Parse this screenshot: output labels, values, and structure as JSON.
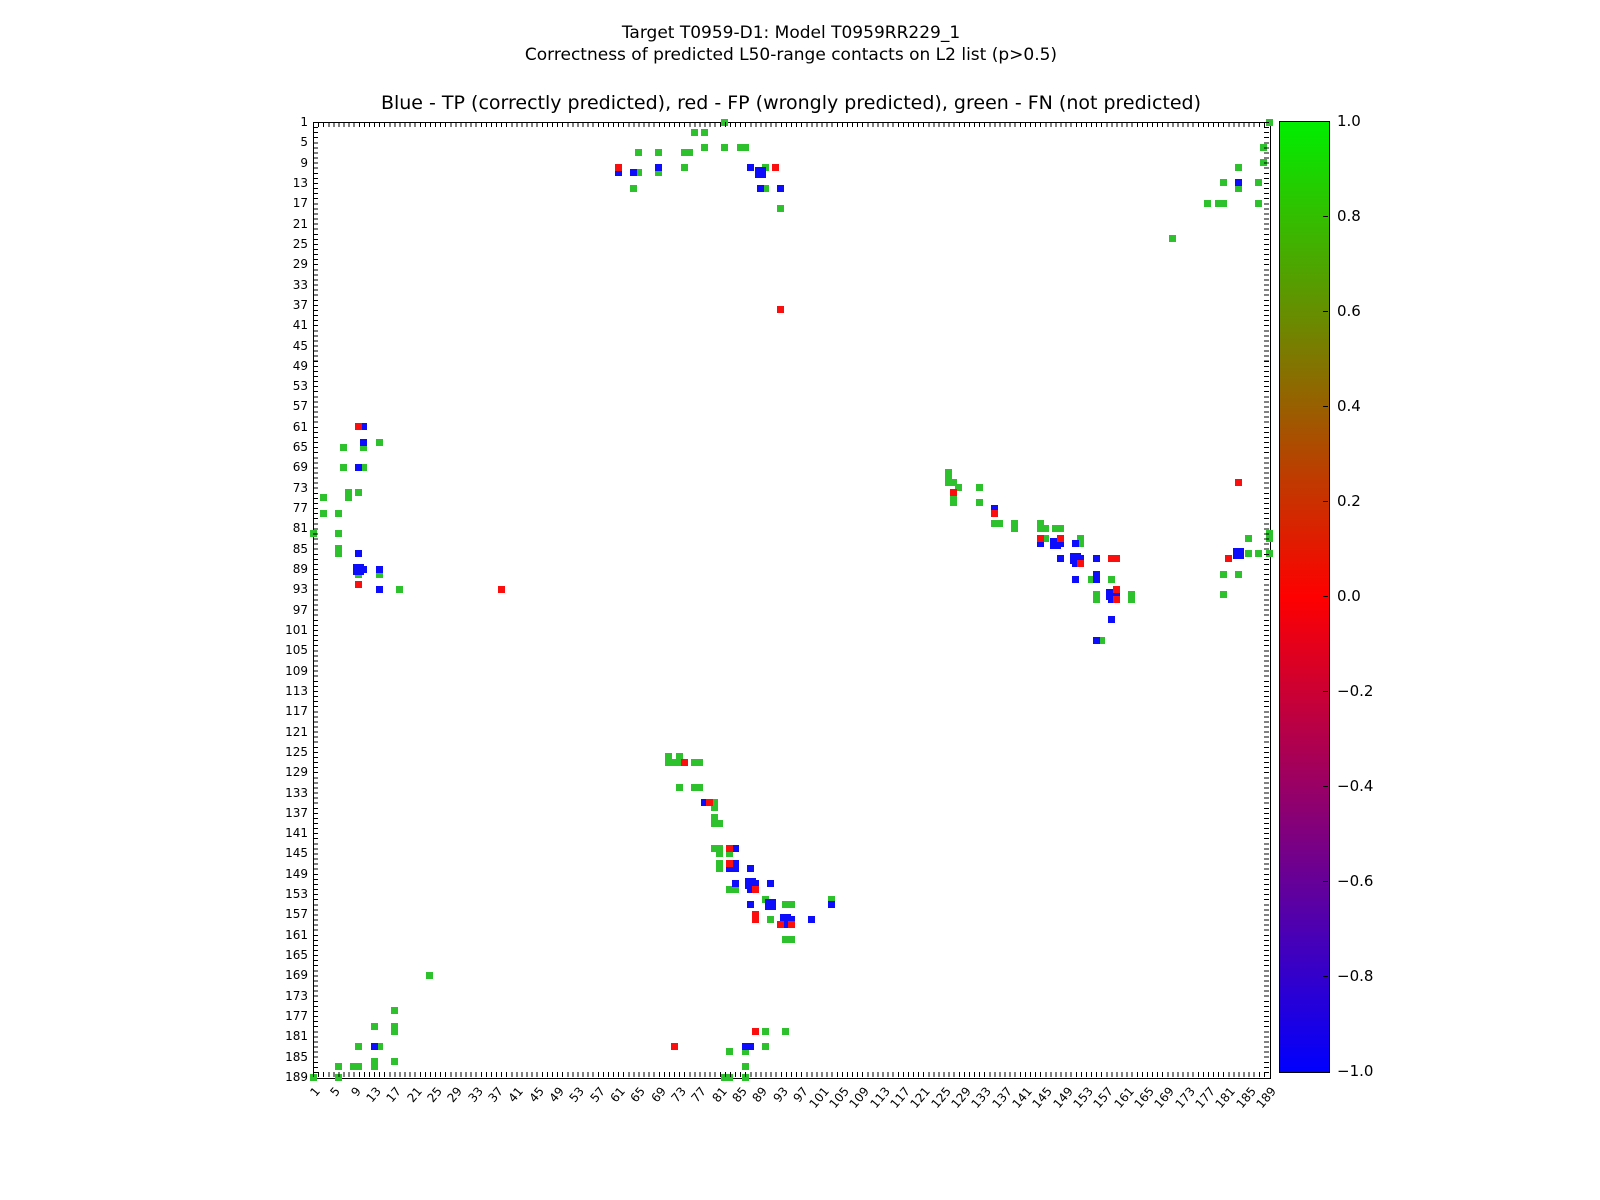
{
  "figure": {
    "suptitle_line1": "Target T0959-D1: Model T0959RR229_1",
    "suptitle_line2": "Correctness of predicted L50-range contacts on L2 list (p>0.5)",
    "axes_title": "Blue - TP (correctly predicted), red - FP (wrongly predicted), green - FN (not predicted)"
  },
  "chart_data": {
    "type": "scatter",
    "title": "Blue - TP (correctly predicted), red - FP (wrongly predicted), green - FN (not predicted)",
    "x_range": [
      1,
      189
    ],
    "y_range": [
      1,
      189
    ],
    "y_inverted": true,
    "grid": false,
    "marker": "square",
    "axis_tick_values": [
      1,
      5,
      9,
      13,
      17,
      21,
      25,
      29,
      33,
      37,
      41,
      45,
      49,
      53,
      57,
      61,
      65,
      69,
      73,
      77,
      81,
      85,
      89,
      93,
      97,
      101,
      105,
      109,
      113,
      117,
      121,
      125,
      129,
      133,
      137,
      141,
      145,
      149,
      153,
      157,
      161,
      165,
      169,
      173,
      177,
      181,
      185,
      189
    ],
    "classes": {
      "b": "TP (correctly predicted)",
      "r": "FP (wrongly predicted)",
      "g": "FN (not predicted)"
    },
    "colors": {
      "g": "#2dc22d",
      "r": "#fb0e0e",
      "b": "#0d0dfb"
    },
    "points": [
      [
        82,
        1,
        "g"
      ],
      [
        76,
        3,
        "g"
      ],
      [
        78,
        3,
        "g"
      ],
      [
        78,
        6,
        "g"
      ],
      [
        82,
        6,
        "g"
      ],
      [
        85,
        6,
        "g"
      ],
      [
        86,
        6,
        "g"
      ],
      [
        65,
        7,
        "g"
      ],
      [
        69,
        7,
        "g"
      ],
      [
        74,
        7,
        "g"
      ],
      [
        75,
        7,
        "g"
      ],
      [
        65,
        11,
        "g"
      ],
      [
        69,
        11,
        "g"
      ],
      [
        74,
        10,
        "g"
      ],
      [
        90,
        10,
        "g"
      ],
      [
        64,
        14,
        "g"
      ],
      [
        90,
        14,
        "g"
      ],
      [
        93,
        18,
        "g"
      ],
      [
        189,
        1,
        "g"
      ],
      [
        188,
        6,
        "g"
      ],
      [
        188,
        9,
        "g"
      ],
      [
        183,
        10,
        "g"
      ],
      [
        180,
        13,
        "g"
      ],
      [
        187,
        13,
        "g"
      ],
      [
        183,
        14,
        "g"
      ],
      [
        177,
        17,
        "g"
      ],
      [
        179,
        17,
        "g"
      ],
      [
        180,
        17,
        "g"
      ],
      [
        187,
        17,
        "g"
      ],
      [
        170,
        24,
        "g"
      ],
      [
        14,
        64,
        "g"
      ],
      [
        7,
        65,
        "g"
      ],
      [
        11,
        65,
        "g"
      ],
      [
        7,
        69,
        "g"
      ],
      [
        11,
        69,
        "g"
      ],
      [
        8,
        74,
        "g"
      ],
      [
        8,
        75,
        "g"
      ],
      [
        10,
        74,
        "g"
      ],
      [
        3,
        75,
        "g"
      ],
      [
        3,
        78,
        "g"
      ],
      [
        6,
        78,
        "g"
      ],
      [
        1,
        82,
        "g"
      ],
      [
        6,
        82,
        "g"
      ],
      [
        6,
        85,
        "g"
      ],
      [
        6,
        86,
        "g"
      ],
      [
        10,
        90,
        "g"
      ],
      [
        14,
        90,
        "g"
      ],
      [
        18,
        93,
        "g"
      ],
      [
        126,
        70,
        "g"
      ],
      [
        126,
        71,
        "g"
      ],
      [
        126,
        72,
        "g"
      ],
      [
        127,
        72,
        "g"
      ],
      [
        128,
        73,
        "g"
      ],
      [
        127,
        75,
        "g"
      ],
      [
        127,
        76,
        "g"
      ],
      [
        132,
        73,
        "g"
      ],
      [
        132,
        76,
        "g"
      ],
      [
        135,
        80,
        "g"
      ],
      [
        136,
        80,
        "g"
      ],
      [
        139,
        80,
        "g"
      ],
      [
        139,
        81,
        "g"
      ],
      [
        144,
        80,
        "g"
      ],
      [
        144,
        81,
        "g"
      ],
      [
        145,
        81,
        "g"
      ],
      [
        147,
        81,
        "g"
      ],
      [
        148,
        81,
        "g"
      ],
      [
        145,
        83,
        "g"
      ],
      [
        152,
        83,
        "g"
      ],
      [
        152,
        84,
        "g"
      ],
      [
        154,
        91,
        "g"
      ],
      [
        158,
        91,
        "g"
      ],
      [
        155,
        94,
        "g"
      ],
      [
        155,
        95,
        "g"
      ],
      [
        162,
        94,
        "g"
      ],
      [
        162,
        95,
        "g"
      ],
      [
        156,
        103,
        "g"
      ],
      [
        185,
        83,
        "g"
      ],
      [
        189,
        82,
        "g"
      ],
      [
        189,
        83,
        "g"
      ],
      [
        185,
        86,
        "g"
      ],
      [
        187,
        86,
        "g"
      ],
      [
        189,
        86,
        "g"
      ],
      [
        180,
        90,
        "g"
      ],
      [
        183,
        90,
        "g"
      ],
      [
        180,
        94,
        "g"
      ],
      [
        71,
        126,
        "g"
      ],
      [
        71,
        127,
        "g"
      ],
      [
        72,
        127,
        "g"
      ],
      [
        73,
        126,
        "g"
      ],
      [
        73,
        127,
        "g"
      ],
      [
        76,
        127,
        "g"
      ],
      [
        77,
        127,
        "g"
      ],
      [
        73,
        132,
        "g"
      ],
      [
        76,
        132,
        "g"
      ],
      [
        77,
        132,
        "g"
      ],
      [
        80,
        135,
        "g"
      ],
      [
        80,
        136,
        "g"
      ],
      [
        80,
        138,
        "g"
      ],
      [
        80,
        139,
        "g"
      ],
      [
        81,
        139,
        "g"
      ],
      [
        80,
        144,
        "g"
      ],
      [
        81,
        144,
        "g"
      ],
      [
        81,
        145,
        "g"
      ],
      [
        83,
        145,
        "g"
      ],
      [
        81,
        147,
        "g"
      ],
      [
        81,
        148,
        "g"
      ],
      [
        83,
        152,
        "g"
      ],
      [
        84,
        152,
        "g"
      ],
      [
        90,
        154,
        "g"
      ],
      [
        94,
        155,
        "g"
      ],
      [
        95,
        155,
        "g"
      ],
      [
        103,
        154,
        "g"
      ],
      [
        91,
        158,
        "g"
      ],
      [
        94,
        162,
        "g"
      ],
      [
        95,
        162,
        "g"
      ],
      [
        90,
        180,
        "g"
      ],
      [
        94,
        180,
        "g"
      ],
      [
        83,
        184,
        "g"
      ],
      [
        86,
        184,
        "g"
      ],
      [
        90,
        183,
        "g"
      ],
      [
        86,
        187,
        "g"
      ],
      [
        82,
        189,
        "g"
      ],
      [
        83,
        189,
        "g"
      ],
      [
        86,
        189,
        "g"
      ],
      [
        24,
        169,
        "g"
      ],
      [
        17,
        176,
        "g"
      ],
      [
        13,
        179,
        "g"
      ],
      [
        17,
        179,
        "g"
      ],
      [
        17,
        180,
        "g"
      ],
      [
        10,
        183,
        "g"
      ],
      [
        14,
        183,
        "g"
      ],
      [
        6,
        187,
        "g"
      ],
      [
        9,
        187,
        "g"
      ],
      [
        10,
        187,
        "g"
      ],
      [
        13,
        186,
        "g"
      ],
      [
        13,
        187,
        "g"
      ],
      [
        17,
        186,
        "g"
      ],
      [
        1,
        189,
        "g"
      ],
      [
        6,
        189,
        "g"
      ],
      [
        61,
        11,
        "b"
      ],
      [
        64,
        11,
        "b"
      ],
      [
        69,
        10,
        "b"
      ],
      [
        87,
        10,
        "b"
      ],
      [
        89,
        11,
        "b",
        2
      ],
      [
        89,
        14,
        "b"
      ],
      [
        93,
        14,
        "b"
      ],
      [
        183,
        13,
        "b"
      ],
      [
        11,
        61,
        "b"
      ],
      [
        11,
        64,
        "b"
      ],
      [
        10,
        69,
        "b"
      ],
      [
        10,
        86,
        "b"
      ],
      [
        10,
        89,
        "b",
        2
      ],
      [
        11,
        89,
        "b"
      ],
      [
        14,
        89,
        "b"
      ],
      [
        14,
        93,
        "b"
      ],
      [
        135,
        77,
        "b"
      ],
      [
        144,
        84,
        "b"
      ],
      [
        147,
        84,
        "b",
        2
      ],
      [
        148,
        84,
        "b"
      ],
      [
        151,
        84,
        "b"
      ],
      [
        148,
        87,
        "b"
      ],
      [
        151,
        87,
        "b",
        2
      ],
      [
        152,
        87,
        "b"
      ],
      [
        151,
        88,
        "b"
      ],
      [
        155,
        87,
        "b"
      ],
      [
        151,
        91,
        "b"
      ],
      [
        155,
        90,
        "b"
      ],
      [
        155,
        91,
        "b"
      ],
      [
        158,
        94,
        "b",
        2
      ],
      [
        159,
        94,
        "b"
      ],
      [
        158,
        95,
        "b"
      ],
      [
        158,
        99,
        "b"
      ],
      [
        155,
        103,
        "b"
      ],
      [
        183,
        86,
        "b",
        2
      ],
      [
        78,
        135,
        "b"
      ],
      [
        84,
        144,
        "b"
      ],
      [
        84,
        147,
        "b"
      ],
      [
        83,
        148,
        "b"
      ],
      [
        84,
        148,
        "b"
      ],
      [
        87,
        148,
        "b"
      ],
      [
        84,
        151,
        "b"
      ],
      [
        87,
        151,
        "b",
        2
      ],
      [
        88,
        151,
        "b"
      ],
      [
        87,
        152,
        "b"
      ],
      [
        91,
        151,
        "b"
      ],
      [
        87,
        155,
        "b"
      ],
      [
        91,
        155,
        "b",
        2
      ],
      [
        103,
        155,
        "b"
      ],
      [
        94,
        158,
        "b",
        2
      ],
      [
        95,
        158,
        "b"
      ],
      [
        94,
        159,
        "b"
      ],
      [
        99,
        158,
        "b"
      ],
      [
        86,
        183,
        "b"
      ],
      [
        87,
        183,
        "b"
      ],
      [
        13,
        183,
        "b"
      ],
      [
        61,
        10,
        "r"
      ],
      [
        92,
        10,
        "r"
      ],
      [
        10,
        61,
        "r"
      ],
      [
        10,
        92,
        "r"
      ],
      [
        93,
        38,
        "r"
      ],
      [
        38,
        93,
        "r"
      ],
      [
        127,
        74,
        "r"
      ],
      [
        135,
        78,
        "r"
      ],
      [
        144,
        83,
        "r"
      ],
      [
        148,
        83,
        "r"
      ],
      [
        152,
        88,
        "r"
      ],
      [
        158,
        87,
        "r"
      ],
      [
        159,
        87,
        "r"
      ],
      [
        159,
        93,
        "r"
      ],
      [
        159,
        95,
        "r"
      ],
      [
        183,
        72,
        "r"
      ],
      [
        181,
        87,
        "r"
      ],
      [
        74,
        127,
        "r"
      ],
      [
        79,
        135,
        "r"
      ],
      [
        83,
        144,
        "r"
      ],
      [
        83,
        147,
        "r"
      ],
      [
        88,
        152,
        "r"
      ],
      [
        88,
        157,
        "r"
      ],
      [
        88,
        158,
        "r"
      ],
      [
        93,
        159,
        "r"
      ],
      [
        95,
        159,
        "r"
      ],
      [
        88,
        180,
        "r"
      ],
      [
        72,
        183,
        "r"
      ]
    ],
    "colorbar": {
      "min": -1.0,
      "max": 1.0,
      "tick_labels": [
        "1.0",
        "0.8",
        "0.6",
        "0.4",
        "0.2",
        "0.0",
        "−0.2",
        "−0.4",
        "−0.6",
        "−0.8",
        "−1.0"
      ],
      "top_color": "#00ee00",
      "mid_color": "#fe0000",
      "bottom_color": "#0000fe"
    }
  }
}
